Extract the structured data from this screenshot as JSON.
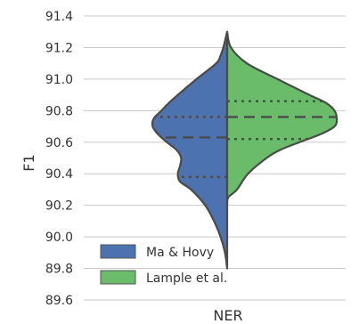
{
  "chart_data": {
    "type": "violin",
    "title": "",
    "xlabel": "NER",
    "ylabel": "F1",
    "categories": [
      "NER"
    ],
    "ylim": [
      89.6,
      91.4
    ],
    "yticks": [
      "89.6",
      "89.8",
      "90.0",
      "90.2",
      "90.4",
      "90.6",
      "90.8",
      "91.0",
      "91.2",
      "91.4"
    ],
    "grid": true,
    "legend_position": "lower-left",
    "series": [
      {
        "name": "Ma & Hovy",
        "color": "#4c72b0",
        "side": "left",
        "quartiles": [
          90.38,
          90.63,
          90.76
        ],
        "density": [
          [
            89.8,
            0.0
          ],
          [
            89.9,
            0.02
          ],
          [
            90.0,
            0.06
          ],
          [
            90.1,
            0.12
          ],
          [
            90.2,
            0.2
          ],
          [
            90.3,
            0.33
          ],
          [
            90.35,
            0.43
          ],
          [
            90.4,
            0.45
          ],
          [
            90.45,
            0.43
          ],
          [
            90.5,
            0.42
          ],
          [
            90.55,
            0.46
          ],
          [
            90.6,
            0.55
          ],
          [
            90.65,
            0.63
          ],
          [
            90.7,
            0.68
          ],
          [
            90.75,
            0.67
          ],
          [
            90.8,
            0.6
          ],
          [
            90.85,
            0.53
          ],
          [
            90.9,
            0.45
          ],
          [
            91.0,
            0.28
          ],
          [
            91.1,
            0.1
          ],
          [
            91.15,
            0.06
          ],
          [
            91.2,
            0.035
          ],
          [
            91.3,
            0.0
          ]
        ]
      },
      {
        "name": "Lample et al.",
        "color": "#6abc6a",
        "side": "right",
        "quartiles": [
          90.62,
          90.76,
          90.86
        ],
        "density": [
          [
            90.2,
            0.0
          ],
          [
            90.25,
            0.01
          ],
          [
            90.3,
            0.09
          ],
          [
            90.4,
            0.19
          ],
          [
            90.5,
            0.36
          ],
          [
            90.55,
            0.48
          ],
          [
            90.6,
            0.66
          ],
          [
            90.65,
            0.85
          ],
          [
            90.7,
            0.98
          ],
          [
            90.75,
            1.0
          ],
          [
            90.8,
            0.98
          ],
          [
            90.85,
            0.9
          ],
          [
            90.9,
            0.75
          ],
          [
            91.0,
            0.46
          ],
          [
            91.1,
            0.18
          ],
          [
            91.2,
            0.035
          ],
          [
            91.3,
            0.0
          ]
        ]
      }
    ]
  }
}
